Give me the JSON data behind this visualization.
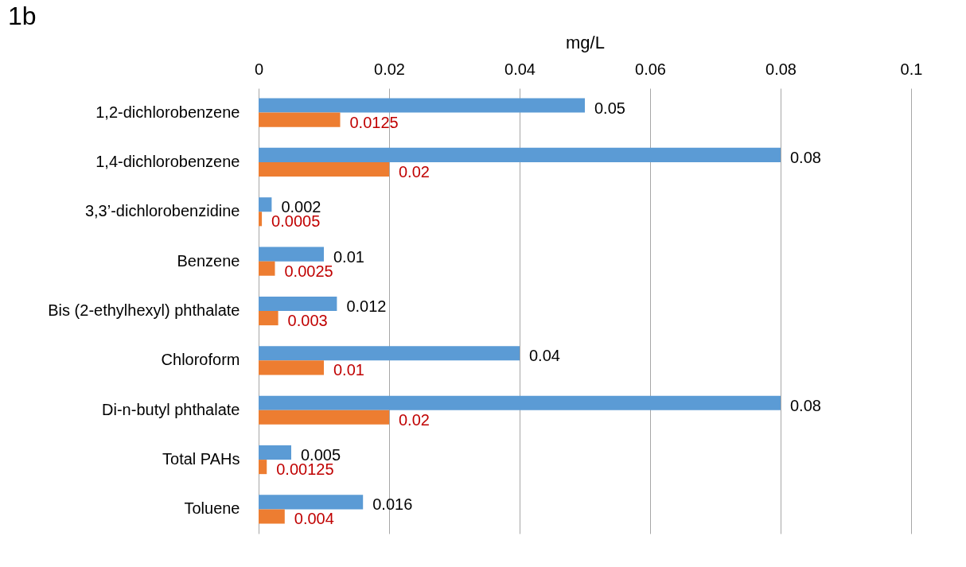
{
  "chart_data": {
    "type": "bar",
    "orientation": "horizontal",
    "title": "1b",
    "xlabel": "mg/L",
    "categories": [
      "1,2-dichlorobenzene",
      "1,4-dichlorobenzene",
      "3,3’-dichlorobenzidine",
      "Benzene",
      "Bis (2-ethylhexyl) phthalate",
      "Chloroform",
      "Di-n-butyl phthalate",
      "Total PAHs",
      "Toluene"
    ],
    "series": [
      {
        "color": "#5b9bd5",
        "values": [
          0.05,
          0.08,
          0.002,
          0.01,
          0.012,
          0.04,
          0.08,
          0.005,
          0.016
        ]
      },
      {
        "color": "#ed7d31",
        "values": [
          0.0125,
          0.02,
          0.0005,
          0.0025,
          0.003,
          0.01,
          0.02,
          0.00125,
          0.004
        ]
      }
    ],
    "xlim": [
      0,
      0.1
    ],
    "xticks": [
      0,
      {
        "value": 0.02,
        "label": "0.02"
      },
      {
        "value": 0.04,
        "label": "0.04"
      },
      {
        "value": 0.06,
        "label": "0.06"
      },
      {
        "value": 0.08,
        "label": "0.08"
      },
      {
        "value": 0.1,
        "label": "0.1"
      }
    ],
    "grid": "x",
    "legend": false,
    "data_labels": true
  }
}
